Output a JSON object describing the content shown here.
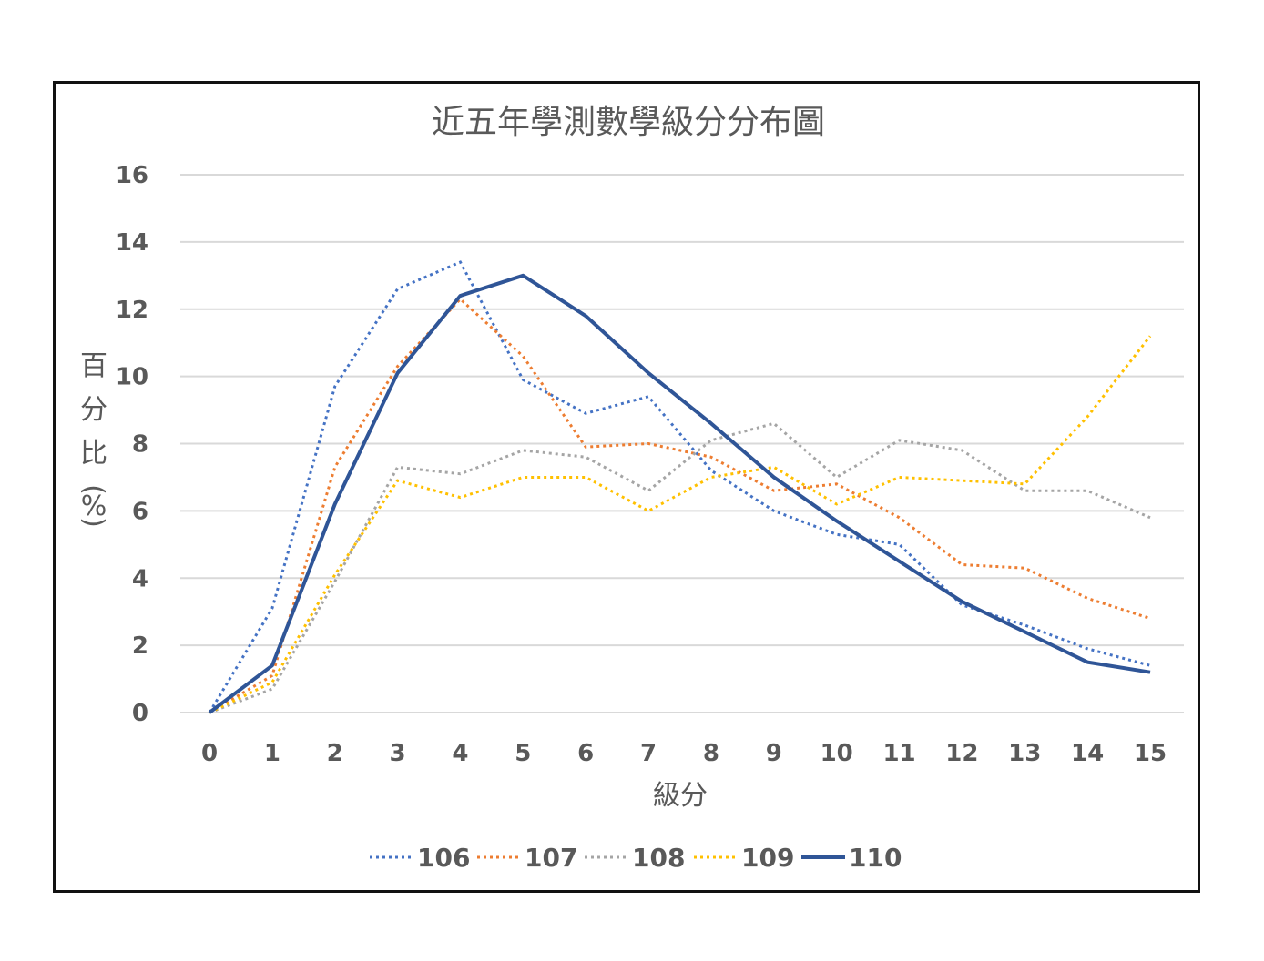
{
  "chart_data": {
    "type": "line",
    "title": "近五年學測數學級分分布圖",
    "xlabel": "級分",
    "ylabel": "百分比(%)",
    "ylabel_chars": [
      "百",
      "分",
      "比",
      "(",
      "%",
      ")"
    ],
    "x": [
      0,
      1,
      2,
      3,
      4,
      5,
      6,
      7,
      8,
      9,
      10,
      11,
      12,
      13,
      14,
      15
    ],
    "xlim": [
      0,
      15
    ],
    "ylim": [
      0,
      16
    ],
    "yticks": [
      0,
      2,
      4,
      6,
      8,
      10,
      12,
      14,
      16
    ],
    "grid": true,
    "legend": "bottom",
    "series": [
      {
        "name": "106",
        "color": "#4472c4",
        "style": "dotted",
        "values": [
          0.0,
          3.1,
          9.7,
          12.6,
          13.4,
          9.9,
          8.9,
          9.4,
          7.2,
          6.0,
          5.3,
          5.0,
          3.2,
          2.6,
          1.9,
          1.4
        ]
      },
      {
        "name": "107",
        "color": "#ed7d31",
        "style": "dotted",
        "values": [
          0.0,
          1.1,
          7.3,
          10.3,
          12.3,
          10.6,
          7.9,
          8.0,
          7.6,
          6.6,
          6.8,
          5.8,
          4.4,
          4.3,
          3.4,
          2.8
        ]
      },
      {
        "name": "108",
        "color": "#a5a5a5",
        "style": "dotted",
        "values": [
          0.0,
          0.7,
          3.9,
          7.3,
          7.1,
          7.8,
          7.6,
          6.6,
          8.1,
          8.6,
          7.0,
          8.1,
          7.8,
          6.6,
          6.6,
          5.8
        ]
      },
      {
        "name": "109",
        "color": "#ffc000",
        "style": "dotted",
        "values": [
          0.0,
          0.9,
          4.1,
          6.9,
          6.4,
          7.0,
          7.0,
          6.0,
          7.0,
          7.3,
          6.2,
          7.0,
          6.9,
          6.8,
          8.8,
          11.2
        ]
      },
      {
        "name": "110",
        "color": "#2f5597",
        "style": "solid",
        "values": [
          0.0,
          1.4,
          6.2,
          10.1,
          12.4,
          13.0,
          11.8,
          10.1,
          8.6,
          7.0,
          5.7,
          4.5,
          3.3,
          2.4,
          1.5,
          1.2
        ]
      }
    ]
  }
}
